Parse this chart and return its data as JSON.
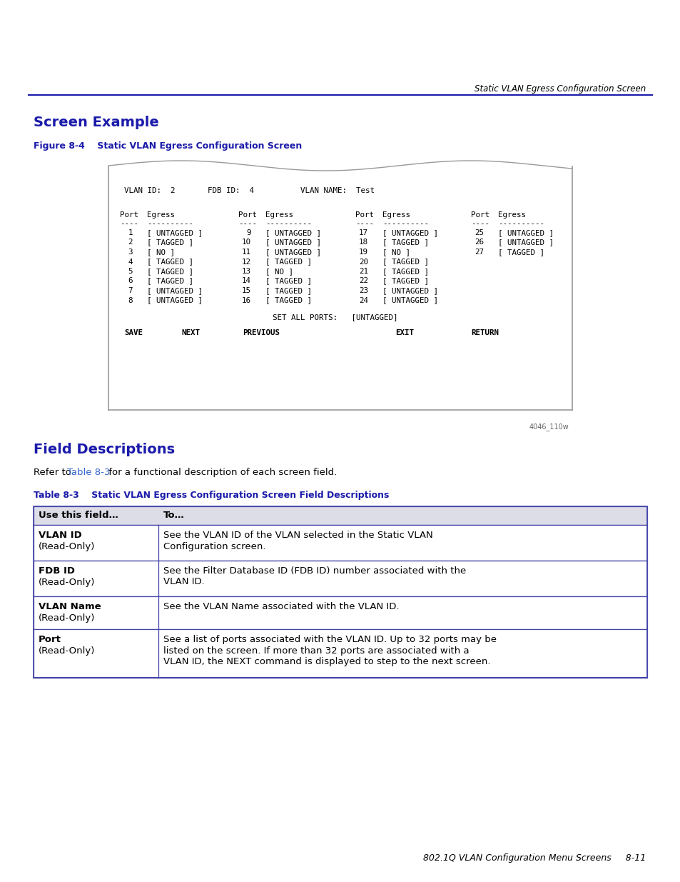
{
  "page_title": "Static VLAN Egress Configuration Screen",
  "section_title": "Screen Example",
  "figure_label": "Figure 8-4    Static VLAN Egress Configuration Screen",
  "col1": [
    [
      "1",
      "[ UNTAGGED ]"
    ],
    [
      "2",
      "[ TAGGED ]"
    ],
    [
      "3",
      "[ NO ]"
    ],
    [
      "4",
      "[ TAGGED ]"
    ],
    [
      "5",
      "[ TAGGED ]"
    ],
    [
      "6",
      "[ TAGGED ]"
    ],
    [
      "7",
      "[ UNTAGGED ]"
    ],
    [
      "8",
      "[ UNTAGGED ]"
    ]
  ],
  "col2": [
    [
      "9",
      "[ UNTAGGED ]"
    ],
    [
      "10",
      "[ UNTAGGED ]"
    ],
    [
      "11",
      "[ UNTAGGED ]"
    ],
    [
      "12",
      "[ TAGGED ]"
    ],
    [
      "13",
      "[ NO ]"
    ],
    [
      "14",
      "[ TAGGED ]"
    ],
    [
      "15",
      "[ TAGGED ]"
    ],
    [
      "16",
      "[ TAGGED ]"
    ]
  ],
  "col3": [
    [
      "17",
      "[ UNTAGGED ]"
    ],
    [
      "18",
      "[ TAGGED ]"
    ],
    [
      "19",
      "[ NO ]"
    ],
    [
      "20",
      "[ TAGGED ]"
    ],
    [
      "21",
      "[ TAGGED ]"
    ],
    [
      "22",
      "[ TAGGED ]"
    ],
    [
      "23",
      "[ UNTAGGED ]"
    ],
    [
      "24",
      "[ UNTAGGED ]"
    ]
  ],
  "col4": [
    [
      "25",
      "[ UNTAGGED ]"
    ],
    [
      "26",
      "[ UNTAGGED ]"
    ],
    [
      "27",
      "[ TAGGED ]"
    ]
  ],
  "image_ref": "4046_110w",
  "field_desc_title": "Field Descriptions",
  "table_title": "Table 8-3    Static VLAN Egress Configuration Screen Field Descriptions",
  "table_header": [
    "Use this field…",
    "To…"
  ],
  "table_rows": [
    {
      "field_bold": "VLAN ID",
      "field_sub": "(Read-Only)",
      "desc": "See the VLAN ID of the VLAN selected in the Static VLAN\nConfiguration screen."
    },
    {
      "field_bold": "FDB ID",
      "field_sub": "(Read-Only)",
      "desc": "See the Filter Database ID (FDB ID) number associated with the\nVLAN ID."
    },
    {
      "field_bold": "VLAN Name",
      "field_sub": "(Read-Only)",
      "desc": "See the VLAN Name associated with the VLAN ID."
    },
    {
      "field_bold": "Port",
      "field_sub": "(Read-Only)",
      "desc": "See a list of ports associated with the VLAN ID. Up to 32 ports may be\nlisted on the screen. If more than 32 ports are associated with a\nVLAN ID, the NEXT command is displayed to step to the next screen."
    }
  ],
  "footer": "802.1Q VLAN Configuration Menu Screens     8-11",
  "blue_color": "#1a1aaa",
  "table_header_bg": "#dddde8",
  "link_color": "#3366cc",
  "border_color": "#4444aa",
  "screen_border": "#999999",
  "gray_text": "#666666"
}
